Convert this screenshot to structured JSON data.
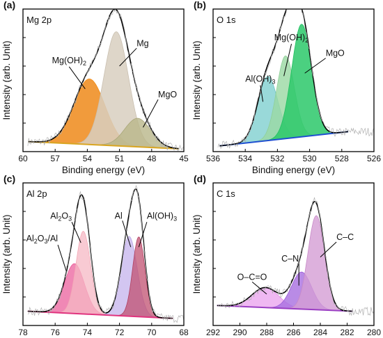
{
  "figure": {
    "panels": [
      {
        "id": "a",
        "letter": "(a)",
        "title": "Mg 2p",
        "xlabel": "Binding energy (eV)",
        "ylabel": "Intensity (arb. Unit)"
      },
      {
        "id": "b",
        "letter": "(b)",
        "title": "O 1s",
        "xlabel": "Binding energy (eV)",
        "ylabel": "Intensity (arb. Unit)"
      },
      {
        "id": "c",
        "letter": "(c)",
        "title": "Al 2p",
        "xlabel": "Binding energy (eV)",
        "ylabel": "Intensity (arb. Unit)"
      },
      {
        "id": "d",
        "letter": "(d)",
        "title": "C 1s",
        "xlabel": "Binding energy (eV)",
        "ylabel": "Intensity (arb. Unit)"
      }
    ]
  },
  "chart_data": [
    {
      "type": "area",
      "panel": "a",
      "title": "Mg 2p",
      "xlabel": "Binding energy (eV)",
      "ylabel": "Intensity (arb. Unit)",
      "xlim": [
        60,
        45
      ],
      "x_reversed": true,
      "ylim": [
        0,
        1
      ],
      "xticks": [
        60,
        57,
        54,
        51,
        48,
        45
      ],
      "baseline": {
        "x0": 59.5,
        "y0": 0.07,
        "x1": 45.5,
        "y1": 0.02,
        "color": "#d9a520"
      },
      "peaks": [
        {
          "name": "Mg(OH)2",
          "center": 53.8,
          "height": 0.46,
          "sigma": 1.45,
          "color": "#f08a12",
          "fill": "#ee8a1a",
          "opacity": 0.85
        },
        {
          "name": "Mg",
          "center": 51.3,
          "height": 0.8,
          "sigma": 1.15,
          "color": "#c9bfb0",
          "fill": "#d8cfc0",
          "opacity": 0.85
        },
        {
          "name": "MgO",
          "center": 49.3,
          "height": 0.2,
          "sigma": 1.2,
          "color": "#a8a678",
          "fill": "#b9b78a",
          "opacity": 0.8
        }
      ],
      "envelope_color": "#000000",
      "raw_data_color": "#b0b0b0",
      "annotations": [
        {
          "text": "Mg(OH)",
          "sub": "2",
          "x": 57.3,
          "y": 0.62,
          "ax": 54.2,
          "ay": 0.44
        },
        {
          "text": "Mg",
          "sub": "",
          "x": 49.4,
          "y": 0.74,
          "ax": 51.0,
          "ay": 0.6
        },
        {
          "text": "MgO",
          "sub": "",
          "x": 47.4,
          "y": 0.38,
          "ax": 48.8,
          "ay": 0.17
        }
      ]
    },
    {
      "type": "area",
      "panel": "b",
      "title": "O 1s",
      "xlabel": "Binding energy (eV)",
      "ylabel": "Intensity (arb. Unit)",
      "xlim": [
        536,
        526
      ],
      "x_reversed": true,
      "ylim": [
        0,
        1
      ],
      "xticks": [
        536,
        534,
        532,
        530,
        528,
        526
      ],
      "baseline": {
        "x0": 535.6,
        "y0": 0.04,
        "x1": 527.6,
        "y1": 0.14,
        "color": "#1f4fd1"
      },
      "peaks": [
        {
          "name": "Al(OH)3",
          "center": 532.6,
          "height": 0.45,
          "sigma": 0.62,
          "color": "#6fc3c3",
          "fill": "#7fd0cf",
          "opacity": 0.8
        },
        {
          "name": "Mg(OH)2",
          "center": 531.5,
          "height": 0.58,
          "sigma": 0.55,
          "color": "#8fcf98",
          "fill": "#9ad8a3",
          "opacity": 0.8
        },
        {
          "name": "MgO",
          "center": 530.5,
          "height": 0.79,
          "sigma": 0.62,
          "color": "#20c060",
          "fill": "#2cc86a",
          "opacity": 0.85
        }
      ],
      "envelope_color": "#000000",
      "raw_data_color": "#b0b0b0",
      "annotations": [
        {
          "text": "Mg(OH)",
          "sub": "2",
          "x": 532.2,
          "y": 0.78,
          "ax": 531.6,
          "ay": 0.53
        },
        {
          "text": "MgO",
          "sub": "",
          "x": 529.0,
          "y": 0.67,
          "ax": 530.3,
          "ay": 0.55
        },
        {
          "text": "Al(OH)",
          "sub": "3",
          "x": 534.0,
          "y": 0.49,
          "ax": 532.9,
          "ay": 0.35
        }
      ]
    },
    {
      "type": "area",
      "panel": "c",
      "title": "Al 2p",
      "xlabel": "Binding energy (eV)",
      "ylabel": "Intensity (arb. Unit)",
      "xlim": [
        78,
        68
      ],
      "x_reversed": true,
      "ylim": [
        0,
        1
      ],
      "xticks": [
        78,
        76,
        74,
        72,
        70,
        68
      ],
      "baseline": {
        "x0": 77.7,
        "y0": 0.1,
        "x1": 68.7,
        "y1": 0.05,
        "color": "#e0337e"
      },
      "peaks": [
        {
          "name": "Al2O3/Al",
          "center": 74.8,
          "height": 0.35,
          "sigma": 0.62,
          "color": "#ea5a98",
          "fill": "#ec6aa2",
          "opacity": 0.8
        },
        {
          "name": "Al2O3",
          "center": 74.25,
          "height": 0.58,
          "sigma": 0.45,
          "color": "#f3a8b6",
          "fill": "#f6b8c4",
          "opacity": 0.75
        },
        {
          "name": "Al",
          "center": 71.4,
          "height": 0.56,
          "sigma": 0.5,
          "color": "#b9a6e4",
          "fill": "#c8b8ee",
          "opacity": 0.8
        },
        {
          "name": "Al(OH)3",
          "center": 70.8,
          "height": 0.56,
          "sigma": 0.38,
          "color": "#b04060",
          "fill": "#c05070",
          "opacity": 0.75
        }
      ],
      "envelope_color": "#000000",
      "raw_data_color": "#b0b0b0",
      "annotations": [
        {
          "text": "Al",
          "sub": "2",
          "text2": "O",
          "sub2": "3",
          "x": 76.3,
          "y": 0.75,
          "ax": 74.4,
          "ay": 0.58
        },
        {
          "text": "Al",
          "sub": "2",
          "text2": "O",
          "sub2": "3",
          "text3": "/Al",
          "x": 77.8,
          "y": 0.59,
          "ax": 75.3,
          "ay": 0.38
        },
        {
          "text": "Al",
          "sub": "",
          "x": 72.3,
          "y": 0.75,
          "ax": 71.3,
          "ay": 0.55
        },
        {
          "text": "Al(OH)",
          "sub": "3",
          "x": 70.3,
          "y": 0.75,
          "ax": 70.8,
          "ay": 0.55
        }
      ]
    },
    {
      "type": "area",
      "panel": "d",
      "title": "C 1s",
      "xlabel": "Binding energy (eV)",
      "ylabel": "Intensity (arb. Unit)",
      "xlim": [
        292,
        280
      ],
      "x_reversed": true,
      "ylim": [
        0,
        1
      ],
      "xticks": [
        292,
        290,
        288,
        286,
        284,
        282,
        280
      ],
      "baseline": {
        "x0": 291.7,
        "y0": 0.14,
        "x1": 281.6,
        "y1": 0.1,
        "color": "#9b3fc3"
      },
      "peaks": [
        {
          "name": "O–C=O",
          "center": 288.1,
          "height": 0.14,
          "sigma": 1.0,
          "color": "#e28ae6",
          "fill": "#e9a0ee",
          "opacity": 0.75
        },
        {
          "name": "C–N",
          "center": 285.4,
          "height": 0.26,
          "sigma": 0.75,
          "color": "#9a5ad8",
          "fill": "#a86ee0",
          "opacity": 0.8
        },
        {
          "name": "C–C",
          "center": 284.3,
          "height": 0.66,
          "sigma": 0.62,
          "color": "#c78ac7",
          "fill": "#d49ed4",
          "opacity": 0.8
        }
      ],
      "envelope_color": "#000000",
      "raw_data_color": "#b0b0b0",
      "annotations": [
        {
          "text": "C–C",
          "sub": "",
          "x": 282.8,
          "y": 0.6,
          "ax": 284.0,
          "ay": 0.48
        },
        {
          "text": "C–N",
          "sub": "",
          "x": 286.9,
          "y": 0.45,
          "ax": 285.6,
          "ay": 0.28
        },
        {
          "text": "O–C=O",
          "sub": "",
          "x": 290.2,
          "y": 0.32,
          "ax": 288.0,
          "ay": 0.22
        }
      ]
    }
  ]
}
